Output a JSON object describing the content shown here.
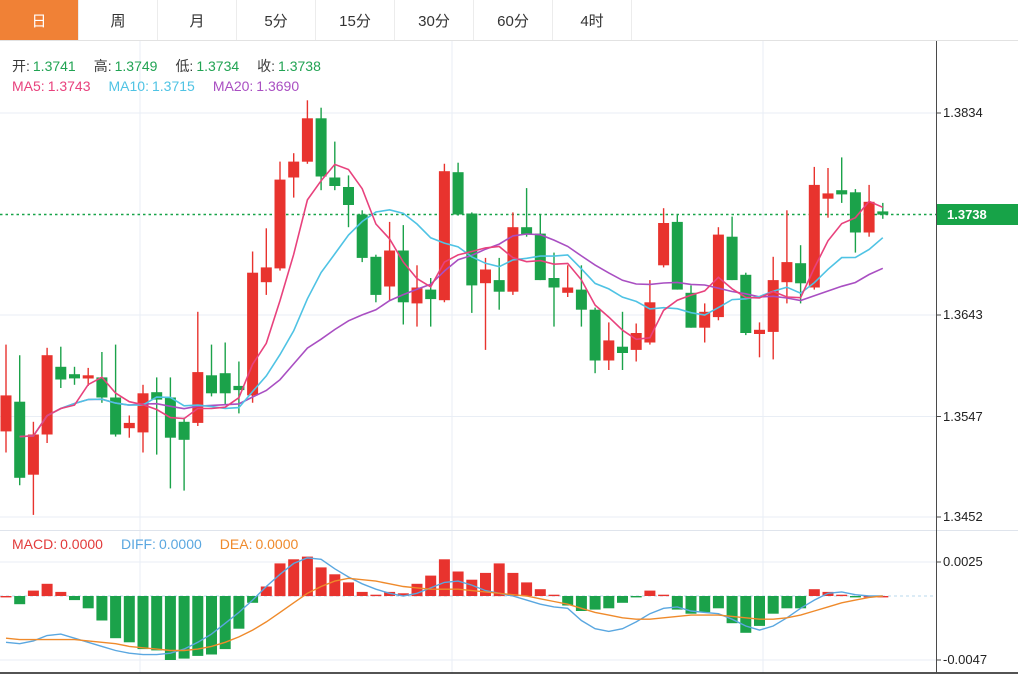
{
  "toolbar": {
    "tabs": [
      {
        "label": "日",
        "active": true
      },
      {
        "label": "周",
        "active": false
      },
      {
        "label": "月",
        "active": false
      },
      {
        "label": "5分",
        "active": false
      },
      {
        "label": "15分",
        "active": false
      },
      {
        "label": "30分",
        "active": false
      },
      {
        "label": "60分",
        "active": false
      },
      {
        "label": "4时",
        "active": false
      }
    ]
  },
  "ohlc_row": {
    "open_label": "开:",
    "open_value": "1.3741",
    "high_label": "高:",
    "high_value": "1.3749",
    "low_label": "低:",
    "low_value": "1.3734",
    "close_label": "收:",
    "close_value": "1.3738"
  },
  "ma_row": {
    "ma5_label": "MA5:",
    "ma5_value": "1.3743",
    "ma10_label": "MA10:",
    "ma10_value": "1.3715",
    "ma20_label": "MA20:",
    "ma20_value": "1.3690"
  },
  "macd_row": {
    "macd_label": "MACD:",
    "macd_value": "0.0000",
    "diff_label": "DIFF:",
    "diff_value": "0.0000",
    "dea_label": "DEA:",
    "dea_value": "0.0000"
  },
  "price_axis": {
    "labels": [
      "1.3834",
      "1.3643",
      "1.3547",
      "1.3452"
    ],
    "last_price_label": "1.3738"
  },
  "macd_axis": {
    "labels": [
      "0.0025",
      "-0.0047"
    ]
  },
  "colors": {
    "accent_orange": "#f08136",
    "up_red": "#e8332e",
    "down_green": "#1ba24a",
    "ma5_pink": "#e8427d",
    "ma10_cyan": "#4fc3e4",
    "ma20_purple": "#a94fc2",
    "diff_blue": "#5aa7e0",
    "dea_orange": "#ef8a2b",
    "last_price_green": "#17a348",
    "ohlc_green": "#21a353",
    "macd_red": "#e23b3b",
    "grid": "#e9eef5",
    "axis_line": "#4a4a4a"
  },
  "chart_data": {
    "type": "candlestick",
    "title": "",
    "legend": [
      "MA5",
      "MA10",
      "MA20"
    ],
    "ma_periods": [
      5,
      10,
      20
    ],
    "ma_last_values": {
      "ma5": 1.3743,
      "ma10": 1.3715,
      "ma20": 1.369
    },
    "price_grid_ticks": [
      1.3834,
      1.3643,
      1.3547,
      1.3452
    ],
    "last_price": 1.3738,
    "ohlc_last": {
      "open": 1.3741,
      "high": 1.3749,
      "low": 1.3734,
      "close": 1.3738
    },
    "candles": [
      [
        1.3533,
        1.3615,
        1.3513,
        1.3567
      ],
      [
        1.3561,
        1.3605,
        1.3482,
        1.3489
      ],
      [
        1.3492,
        1.3542,
        1.3454,
        1.353
      ],
      [
        1.353,
        1.3612,
        1.3522,
        1.3605
      ],
      [
        1.3594,
        1.3613,
        1.3574,
        1.3582
      ],
      [
        1.3587,
        1.3594,
        1.3577,
        1.3583
      ],
      [
        1.3583,
        1.3593,
        1.3576,
        1.3586
      ],
      [
        1.3584,
        1.3608,
        1.356,
        1.3565
      ],
      [
        1.3565,
        1.3615,
        1.3528,
        1.353
      ],
      [
        1.3536,
        1.3548,
        1.3527,
        1.3541
      ],
      [
        1.3532,
        1.3577,
        1.3513,
        1.3569
      ],
      [
        1.357,
        1.3584,
        1.3511,
        1.3563
      ],
      [
        1.3565,
        1.3584,
        1.3479,
        1.3527
      ],
      [
        1.3542,
        1.3546,
        1.3477,
        1.3525
      ],
      [
        1.3541,
        1.3646,
        1.3538,
        1.3589
      ],
      [
        1.3586,
        1.3615,
        1.3566,
        1.3569
      ],
      [
        1.3588,
        1.3617,
        1.3558,
        1.3569
      ],
      [
        1.3576,
        1.3599,
        1.355,
        1.3572
      ],
      [
        1.3567,
        1.3703,
        1.356,
        1.3683
      ],
      [
        1.3674,
        1.3725,
        1.3662,
        1.3688
      ],
      [
        1.3687,
        1.3788,
        1.3685,
        1.3771
      ],
      [
        1.3773,
        1.3796,
        1.3754,
        1.3788
      ],
      [
        1.3788,
        1.3846,
        1.3786,
        1.3829
      ],
      [
        1.3829,
        1.3839,
        1.3761,
        1.3774
      ],
      [
        1.3773,
        1.3807,
        1.3761,
        1.3765
      ],
      [
        1.3764,
        1.3775,
        1.3726,
        1.3747
      ],
      [
        1.3738,
        1.3742,
        1.3693,
        1.3697
      ],
      [
        1.3698,
        1.37,
        1.3655,
        1.3662
      ],
      [
        1.367,
        1.3731,
        1.3657,
        1.3704
      ],
      [
        1.3704,
        1.3728,
        1.3634,
        1.3655
      ],
      [
        1.3654,
        1.369,
        1.3632,
        1.3669
      ],
      [
        1.3667,
        1.3678,
        1.3632,
        1.3658
      ],
      [
        1.3657,
        1.3786,
        1.3655,
        1.3779
      ],
      [
        1.3778,
        1.3787,
        1.3737,
        1.3738
      ],
      [
        1.3739,
        1.374,
        1.3645,
        1.3671
      ],
      [
        1.3673,
        1.3697,
        1.361,
        1.3686
      ],
      [
        1.3676,
        1.3697,
        1.3648,
        1.3665
      ],
      [
        1.3665,
        1.374,
        1.3662,
        1.3726
      ],
      [
        1.3726,
        1.3763,
        1.3717,
        1.3719
      ],
      [
        1.372,
        1.3738,
        1.3676,
        1.3676
      ],
      [
        1.3678,
        1.3702,
        1.3632,
        1.3669
      ],
      [
        1.3664,
        1.369,
        1.366,
        1.3669
      ],
      [
        1.3667,
        1.369,
        1.3632,
        1.3648
      ],
      [
        1.3648,
        1.365,
        1.3588,
        1.36
      ],
      [
        1.36,
        1.3636,
        1.3591,
        1.3619
      ],
      [
        1.3613,
        1.3646,
        1.3591,
        1.3607
      ],
      [
        1.361,
        1.3635,
        1.3599,
        1.3626
      ],
      [
        1.3617,
        1.3676,
        1.3615,
        1.3655
      ],
      [
        1.369,
        1.3744,
        1.3688,
        1.373
      ],
      [
        1.3731,
        1.3738,
        1.3667,
        1.3667
      ],
      [
        1.3664,
        1.3671,
        1.3631,
        1.3631
      ],
      [
        1.3631,
        1.3654,
        1.3617,
        1.3646
      ],
      [
        1.3641,
        1.3726,
        1.3638,
        1.3719
      ],
      [
        1.3717,
        1.3736,
        1.3676,
        1.3676
      ],
      [
        1.3681,
        1.3683,
        1.3624,
        1.3626
      ],
      [
        1.3625,
        1.3636,
        1.3603,
        1.3629
      ],
      [
        1.3627,
        1.3698,
        1.3601,
        1.3676
      ],
      [
        1.3674,
        1.3742,
        1.3654,
        1.3693
      ],
      [
        1.3692,
        1.3709,
        1.3654,
        1.3673
      ],
      [
        1.3669,
        1.3783,
        1.3667,
        1.3766
      ],
      [
        1.3753,
        1.3782,
        1.3735,
        1.3758
      ],
      [
        1.3761,
        1.3792,
        1.3749,
        1.3757
      ],
      [
        1.3759,
        1.3762,
        1.3702,
        1.3721
      ],
      [
        1.3721,
        1.3766,
        1.3717,
        1.375
      ],
      [
        1.3741,
        1.3749,
        1.3734,
        1.3738
      ]
    ],
    "macd": {
      "axis_ticks": [
        0.0025,
        -0.0047
      ],
      "last_values": {
        "macd": 0.0,
        "diff": 0.0,
        "dea": 0.0
      },
      "hist": [
        0.0,
        -0.0006,
        0.0004,
        0.0009,
        0.0003,
        -0.0003,
        -0.0009,
        -0.0018,
        -0.0031,
        -0.0034,
        -0.0039,
        -0.004,
        -0.0047,
        -0.0046,
        -0.0044,
        -0.0043,
        -0.0039,
        -0.0024,
        -0.0005,
        0.0007,
        0.0024,
        0.0027,
        0.0029,
        0.0021,
        0.0016,
        0.001,
        0.0003,
        0.0001,
        0.0003,
        0.0002,
        0.0009,
        0.0015,
        0.0027,
        0.0018,
        0.0012,
        0.0017,
        0.0024,
        0.0017,
        0.001,
        0.0005,
        0.0001,
        -0.0007,
        -0.0011,
        -0.001,
        -0.0009,
        -0.0005,
        -0.0001,
        0.0004,
        0.0001,
        -0.001,
        -0.0013,
        -0.0012,
        -0.0009,
        -0.002,
        -0.0027,
        -0.0022,
        -0.0013,
        -0.0009,
        -0.0009,
        0.0005,
        0.0003,
        0.0001,
        -0.0001,
        0.0,
        0.0
      ],
      "diff": [
        -0.0034,
        -0.0035,
        -0.0033,
        -0.0029,
        -0.0028,
        -0.0031,
        -0.0034,
        -0.0037,
        -0.004,
        -0.0042,
        -0.0043,
        -0.0043,
        -0.0042,
        -0.0039,
        -0.0034,
        -0.0028,
        -0.002,
        -0.0012,
        -0.0003,
        0.0007,
        0.0016,
        0.0024,
        0.0028,
        0.0027,
        0.002,
        0.0014,
        0.0009,
        0.0005,
        0.0002,
        0.0,
        0.0002,
        0.0006,
        0.001,
        0.0011,
        0.0008,
        0.0004,
        0.0002,
        0.0,
        -0.0003,
        -0.0006,
        -0.0008,
        -0.0009,
        -0.0018,
        -0.0024,
        -0.0026,
        -0.0024,
        -0.0019,
        -0.0013,
        -0.0009,
        -0.0008,
        -0.0011,
        -0.0012,
        -0.0013,
        -0.0017,
        -0.0022,
        -0.0025,
        -0.0022,
        -0.0016,
        -0.0009,
        -0.0003,
        0.0002,
        0.0003,
        0.0001,
        0.0,
        0.0
      ],
      "dea": [
        -0.0031,
        -0.0032,
        -0.0032,
        -0.0032,
        -0.0032,
        -0.0032,
        -0.0033,
        -0.0034,
        -0.0035,
        -0.0037,
        -0.0038,
        -0.0039,
        -0.004,
        -0.004,
        -0.0039,
        -0.0037,
        -0.0034,
        -0.003,
        -0.0025,
        -0.0019,
        -0.0012,
        -0.0005,
        0.0002,
        0.0007,
        0.0011,
        0.0013,
        0.0012,
        0.0011,
        0.0009,
        0.0007,
        0.0006,
        0.0005,
        0.0005,
        0.0005,
        0.0004,
        0.0003,
        0.0002,
        0.0001,
        0.0,
        -0.0002,
        -0.0004,
        -0.0006,
        -0.0009,
        -0.0012,
        -0.0014,
        -0.0016,
        -0.0017,
        -0.0017,
        -0.0016,
        -0.0015,
        -0.0014,
        -0.0014,
        -0.0014,
        -0.0015,
        -0.0016,
        -0.0017,
        -0.0017,
        -0.0016,
        -0.0014,
        -0.0011,
        -0.0008,
        -0.0005,
        -0.0003,
        -0.0001,
        0.0
      ]
    }
  }
}
